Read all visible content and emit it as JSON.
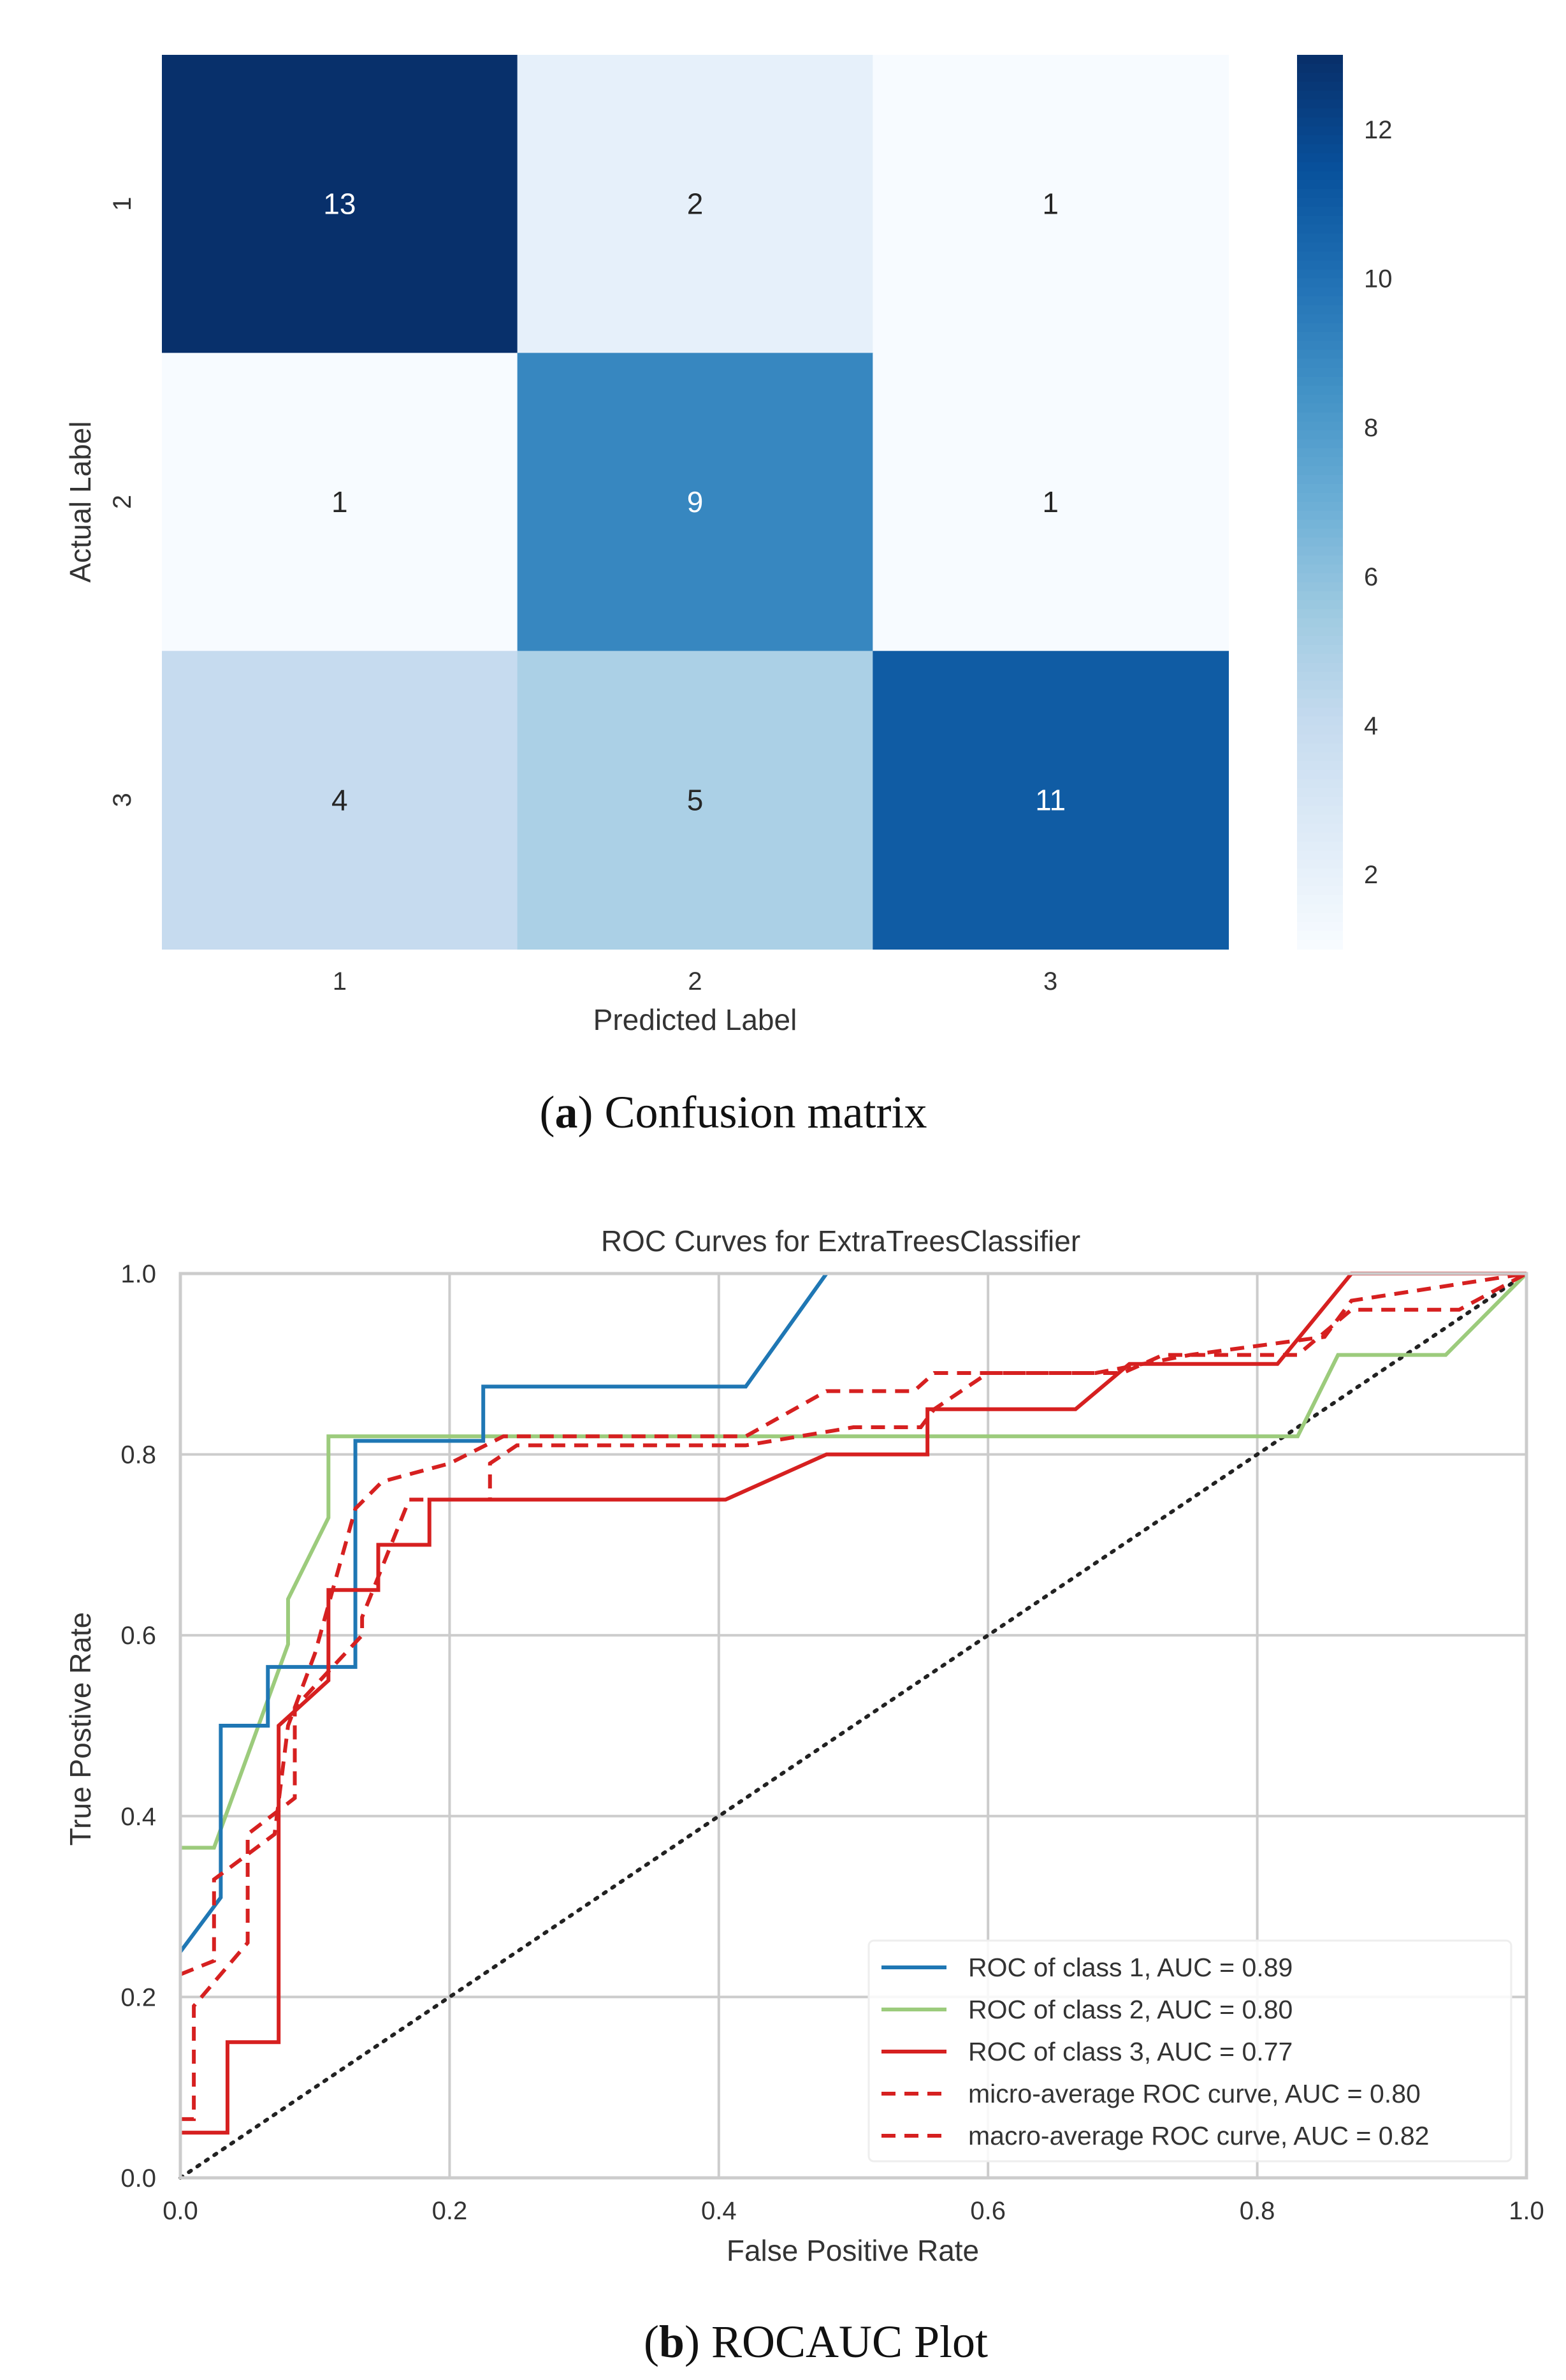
{
  "chart_data": [
    {
      "type": "heatmap",
      "title": "",
      "xlabel": "Predicted Label",
      "ylabel": "Actual Label",
      "x_categories": [
        "1",
        "2",
        "3"
      ],
      "y_categories": [
        "1",
        "2",
        "3"
      ],
      "values": [
        [
          13,
          2,
          1
        ],
        [
          1,
          9,
          1
        ],
        [
          4,
          5,
          11
        ]
      ],
      "colormap": "Blues",
      "colorbar": {
        "range": [
          1,
          13
        ],
        "ticks": [
          2,
          4,
          6,
          8,
          10,
          12
        ]
      },
      "caption_letter": "a",
      "caption_text": "Confusion matrix"
    },
    {
      "type": "line",
      "title": "ROC Curves for ExtraTreesClassifier",
      "xlabel": "False Positive Rate",
      "ylabel": "True Postive Rate",
      "xlim": [
        0,
        1
      ],
      "ylim": [
        0,
        1
      ],
      "xticks": [
        "0.0",
        "0.2",
        "0.4",
        "0.6",
        "0.8",
        "1.0"
      ],
      "yticks": [
        "0.0",
        "0.2",
        "0.4",
        "0.6",
        "0.8",
        "1.0"
      ],
      "grid": true,
      "legend_position": "lower-right",
      "series": [
        {
          "name": "ROC of class 1, AUC = 0.89",
          "color": "#1f77b4",
          "style": "solid",
          "points": [
            [
              0,
              0.25
            ],
            [
              0.03,
              0.31
            ],
            [
              0.03,
              0.5
            ],
            [
              0.065,
              0.5
            ],
            [
              0.065,
              0.565
            ],
            [
              0.13,
              0.565
            ],
            [
              0.13,
              0.815
            ],
            [
              0.225,
              0.815
            ],
            [
              0.225,
              0.875
            ],
            [
              0.42,
              0.875
            ],
            [
              0.48,
              1.0
            ]
          ]
        },
        {
          "name": "ROC of class 2, AUC = 0.80",
          "color": "#9ccb7c",
          "style": "solid",
          "points": [
            [
              0,
              0.365
            ],
            [
              0.025,
              0.365
            ],
            [
              0.08,
              0.59
            ],
            [
              0.08,
              0.64
            ],
            [
              0.11,
              0.73
            ],
            [
              0.11,
              0.82
            ],
            [
              0.83,
              0.82
            ],
            [
              0.86,
              0.91
            ],
            [
              0.94,
              0.91
            ],
            [
              1,
              1
            ]
          ]
        },
        {
          "name": "ROC of class 3, AUC = 0.77",
          "color": "#d62020",
          "style": "solid",
          "points": [
            [
              0,
              0.05
            ],
            [
              0.035,
              0.05
            ],
            [
              0.035,
              0.15
            ],
            [
              0.073,
              0.15
            ],
            [
              0.073,
              0.5
            ],
            [
              0.11,
              0.55
            ],
            [
              0.11,
              0.65
            ],
            [
              0.147,
              0.65
            ],
            [
              0.147,
              0.7
            ],
            [
              0.185,
              0.7
            ],
            [
              0.185,
              0.75
            ],
            [
              0.405,
              0.75
            ],
            [
              0.48,
              0.8
            ],
            [
              0.555,
              0.8
            ],
            [
              0.555,
              0.85
            ],
            [
              0.665,
              0.85
            ],
            [
              0.705,
              0.9
            ],
            [
              0.815,
              0.9
            ],
            [
              0.87,
              1.0
            ],
            [
              1,
              1
            ]
          ]
        },
        {
          "name": "micro-average ROC curve, AUC = 0.80",
          "color": "#d62020",
          "style": "dashed",
          "points": [
            [
              0,
              0.065
            ],
            [
              0.01,
              0.065
            ],
            [
              0.01,
              0.19
            ],
            [
              0.05,
              0.26
            ],
            [
              0.05,
              0.38
            ],
            [
              0.085,
              0.42
            ],
            [
              0.085,
              0.52
            ],
            [
              0.135,
              0.6
            ],
            [
              0.135,
              0.62
            ],
            [
              0.17,
              0.75
            ],
            [
              0.23,
              0.75
            ],
            [
              0.23,
              0.79
            ],
            [
              0.25,
              0.81
            ],
            [
              0.42,
              0.81
            ],
            [
              0.5,
              0.83
            ],
            [
              0.55,
              0.83
            ],
            [
              0.56,
              0.85
            ],
            [
              0.6,
              0.89
            ],
            [
              0.7,
              0.89
            ],
            [
              0.73,
              0.91
            ],
            [
              0.83,
              0.91
            ],
            [
              0.87,
              0.96
            ],
            [
              0.95,
              0.96
            ],
            [
              1,
              1
            ]
          ]
        },
        {
          "name": "macro-average ROC curve, AUC = 0.82",
          "color": "#d62020",
          "style": "dashed",
          "points": [
            [
              0,
              0.225
            ],
            [
              0.025,
              0.24
            ],
            [
              0.025,
              0.33
            ],
            [
              0.07,
              0.38
            ],
            [
              0.08,
              0.5
            ],
            [
              0.1,
              0.58
            ],
            [
              0.13,
              0.74
            ],
            [
              0.15,
              0.77
            ],
            [
              0.2,
              0.79
            ],
            [
              0.24,
              0.82
            ],
            [
              0.42,
              0.82
            ],
            [
              0.48,
              0.87
            ],
            [
              0.545,
              0.87
            ],
            [
              0.56,
              0.89
            ],
            [
              0.68,
              0.89
            ],
            [
              0.75,
              0.91
            ],
            [
              0.85,
              0.93
            ],
            [
              0.87,
              0.97
            ],
            [
              1,
              1
            ]
          ]
        },
        {
          "name": "",
          "color": "#222222",
          "style": "dotted",
          "points": [
            [
              0,
              0
            ],
            [
              1,
              1
            ]
          ]
        }
      ],
      "caption_letter": "b",
      "caption_text": "ROCAUC Plot"
    }
  ]
}
